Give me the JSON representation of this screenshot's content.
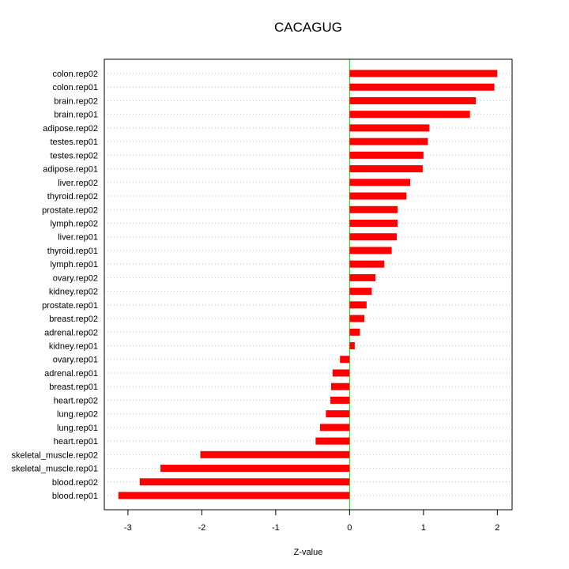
{
  "chart_data": {
    "type": "bar",
    "orientation": "horizontal",
    "title": "CACAGUG",
    "xlabel": "Z-value",
    "ylabel": "",
    "xlim": [
      -3.32,
      2.2
    ],
    "xticks": [
      -3,
      -2,
      -1,
      0,
      1,
      2
    ],
    "xtick_labels": [
      "-3",
      "-2",
      "-1",
      "0",
      "1",
      "2"
    ],
    "grid": "horizontal dotted",
    "zero_line": true,
    "colors": {
      "bar": "#ff0000",
      "zero_line": "#00dd00",
      "grid": "#c8c8c8",
      "frame": "#000000"
    },
    "categories": [
      "colon.rep02",
      "colon.rep01",
      "brain.rep02",
      "brain.rep01",
      "adipose.rep02",
      "testes.rep01",
      "testes.rep02",
      "adipose.rep01",
      "liver.rep02",
      "thyroid.rep02",
      "prostate.rep02",
      "lymph.rep02",
      "liver.rep01",
      "thyroid.rep01",
      "lymph.rep01",
      "ovary.rep02",
      "kidney.rep02",
      "prostate.rep01",
      "breast.rep02",
      "adrenal.rep02",
      "kidney.rep01",
      "ovary.rep01",
      "adrenal.rep01",
      "breast.rep01",
      "heart.rep02",
      "lung.rep02",
      "lung.rep01",
      "heart.rep01",
      "skeletal_muscle.rep02",
      "skeletal_muscle.rep01",
      "blood.rep02",
      "blood.rep01"
    ],
    "values": [
      2.0,
      1.96,
      1.71,
      1.63,
      1.08,
      1.06,
      1.0,
      0.99,
      0.82,
      0.77,
      0.65,
      0.65,
      0.64,
      0.57,
      0.47,
      0.35,
      0.3,
      0.23,
      0.2,
      0.14,
      0.07,
      -0.13,
      -0.23,
      -0.25,
      -0.26,
      -0.32,
      -0.4,
      -0.46,
      -2.02,
      -2.56,
      -2.84,
      -3.13
    ]
  }
}
